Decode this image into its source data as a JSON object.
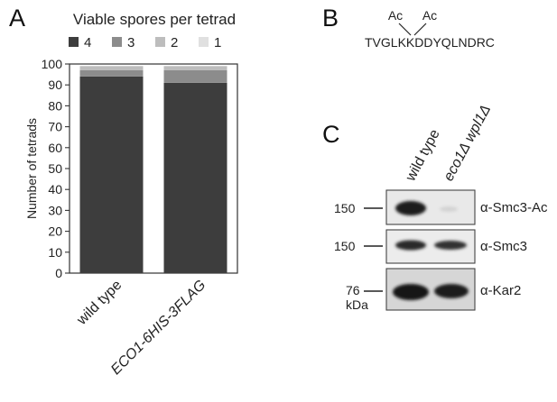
{
  "panels": {
    "a": {
      "letter": "A"
    },
    "b": {
      "letter": "B",
      "sequence": "TVGLKKDDYQLNDRC",
      "modifications": [
        "Ac",
        "Ac"
      ]
    },
    "c": {
      "letter": "C",
      "lanes": [
        "wild type",
        "eco1Δ wpl1Δ"
      ],
      "antibodies": [
        "α-Smc3-Ac",
        "α-Smc3",
        "α-Kar2"
      ],
      "markers": [
        "150",
        "150",
        "76"
      ],
      "marker_unit": "kDa"
    }
  },
  "chart_data": {
    "type": "bar",
    "stacked": true,
    "title": "Viable spores per tetrad",
    "categories": [
      "wild type",
      "ECO1-6HIS-3FLAG"
    ],
    "series": [
      {
        "name": "4",
        "color": "#3d3d3d",
        "values": [
          94,
          91
        ]
      },
      {
        "name": "3",
        "color": "#8c8c8c",
        "values": [
          3,
          6
        ]
      },
      {
        "name": "2",
        "color": "#bdbdbd",
        "values": [
          2,
          2
        ]
      },
      {
        "name": "1",
        "color": "#e0e0e0",
        "values": [
          0,
          0
        ]
      }
    ],
    "xlabel": "",
    "ylabel": "Number of tetrads",
    "ylim": [
      0,
      100
    ],
    "yticks": [
      "0",
      "10",
      "20",
      "30",
      "40",
      "50",
      "60",
      "70",
      "80",
      "90",
      "100"
    ],
    "grid": false,
    "legend_position": "top"
  }
}
